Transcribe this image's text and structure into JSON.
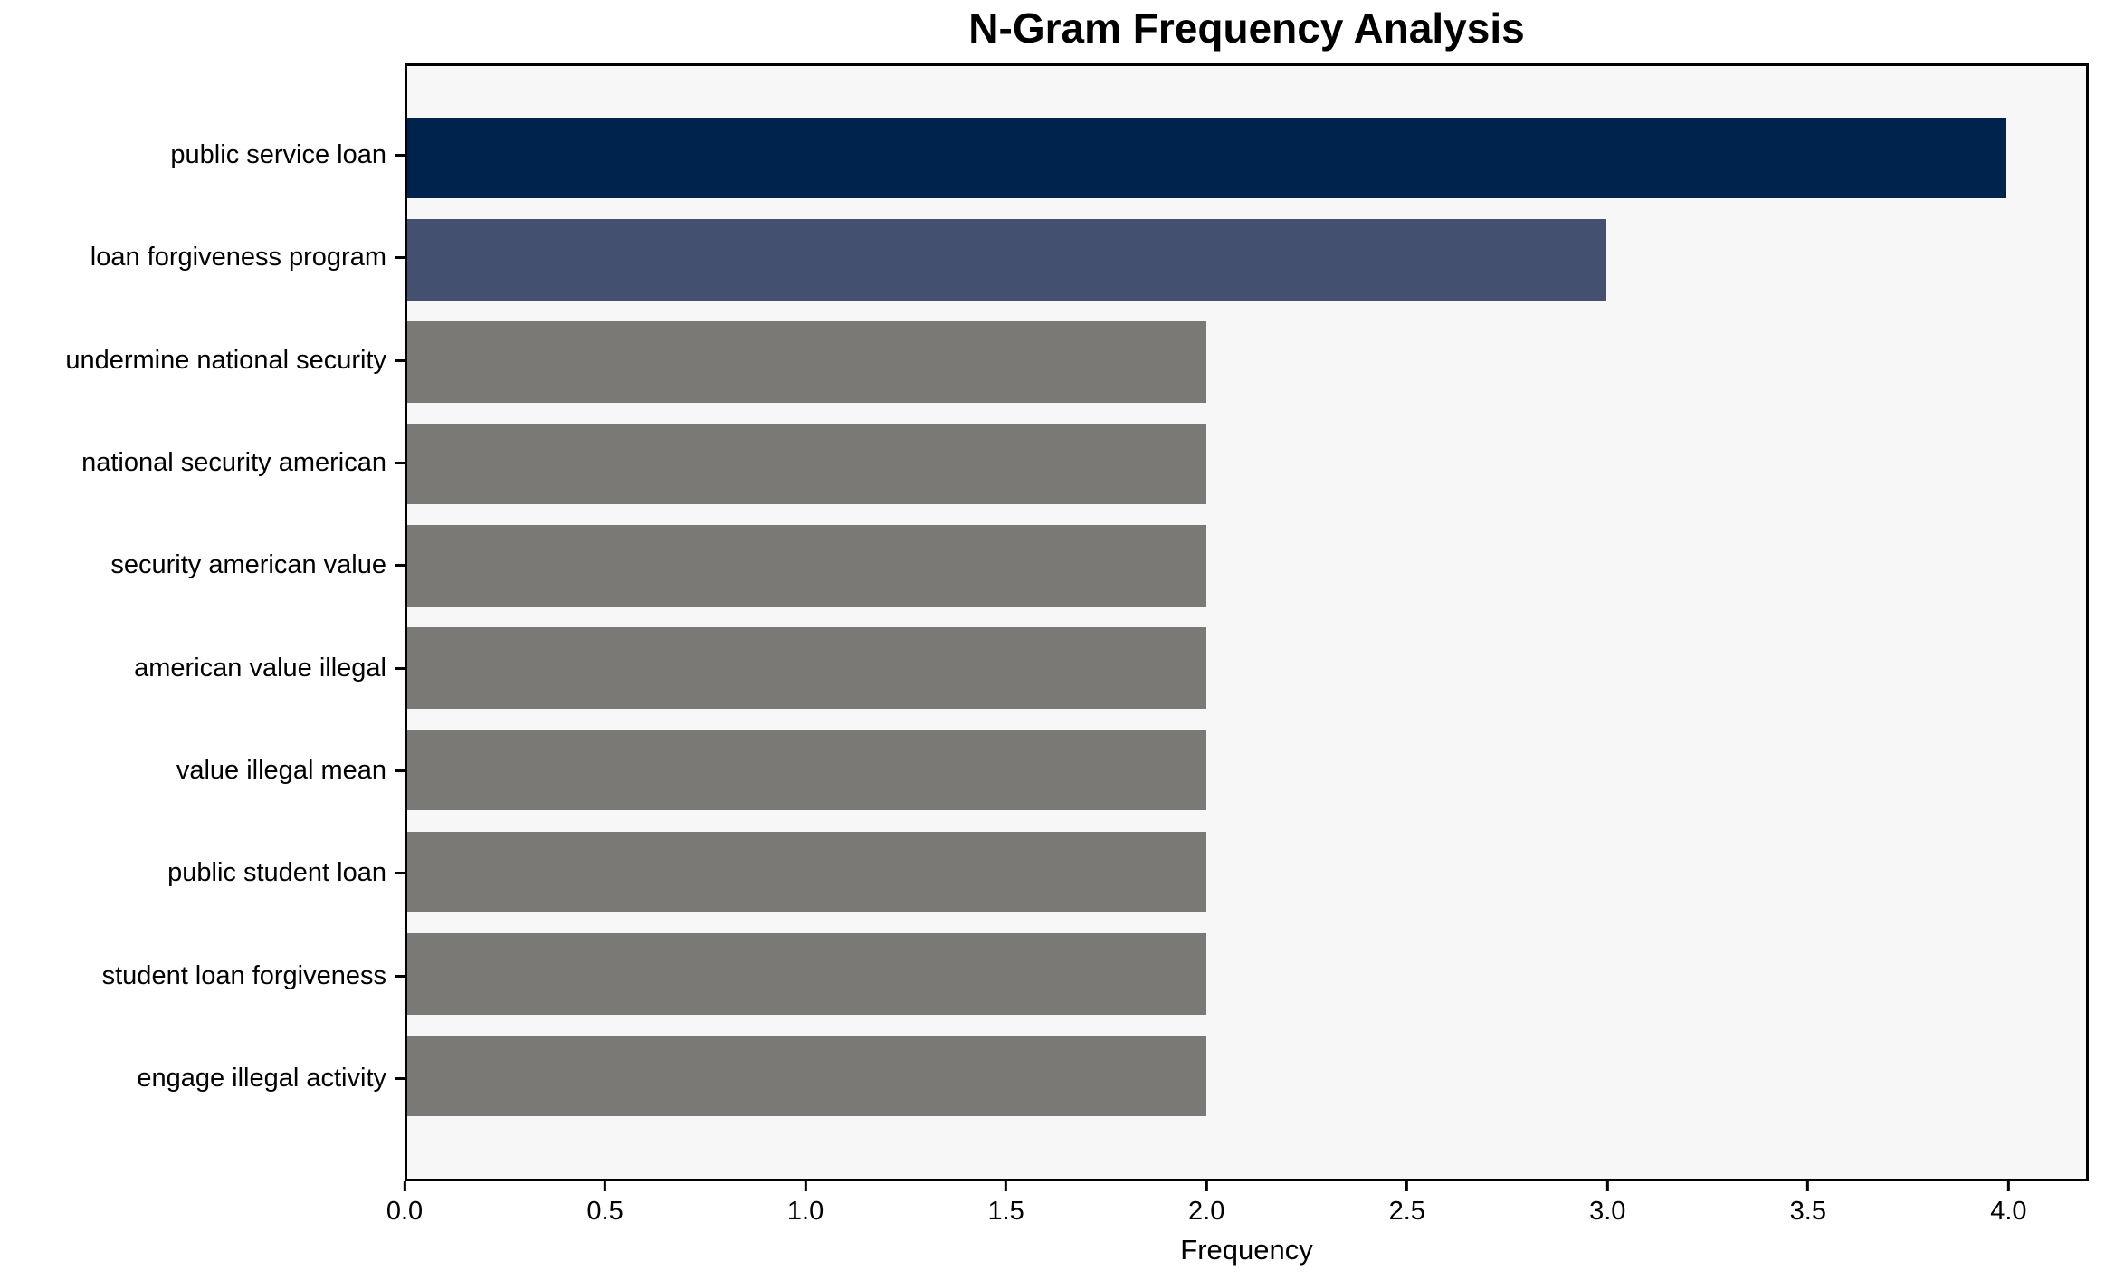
{
  "chart_data": {
    "type": "bar",
    "orientation": "horizontal",
    "title": "N-Gram Frequency Analysis",
    "xlabel": "Frequency",
    "ylabel": "",
    "categories": [
      "public service loan",
      "loan forgiveness program",
      "undermine national security",
      "national security american",
      "security american value",
      "american value illegal",
      "value illegal mean",
      "public student loan",
      "student loan forgiveness",
      "engage illegal activity"
    ],
    "values": [
      4,
      3,
      2,
      2,
      2,
      2,
      2,
      2,
      2,
      2
    ],
    "bar_colors": [
      "#00234e",
      "#44506f",
      "#7a7975",
      "#7a7975",
      "#7a7975",
      "#7a7975",
      "#7a7975",
      "#7a7975",
      "#7a7975",
      "#7a7975"
    ],
    "xlim": [
      0,
      4.2
    ],
    "xticks": [
      "0.0",
      "0.5",
      "1.0",
      "1.5",
      "2.0",
      "2.5",
      "3.0",
      "3.5",
      "4.0"
    ],
    "grid": false,
    "legend": null,
    "plot_background": "#f8f7f7",
    "figure_background": "#ffffff"
  }
}
